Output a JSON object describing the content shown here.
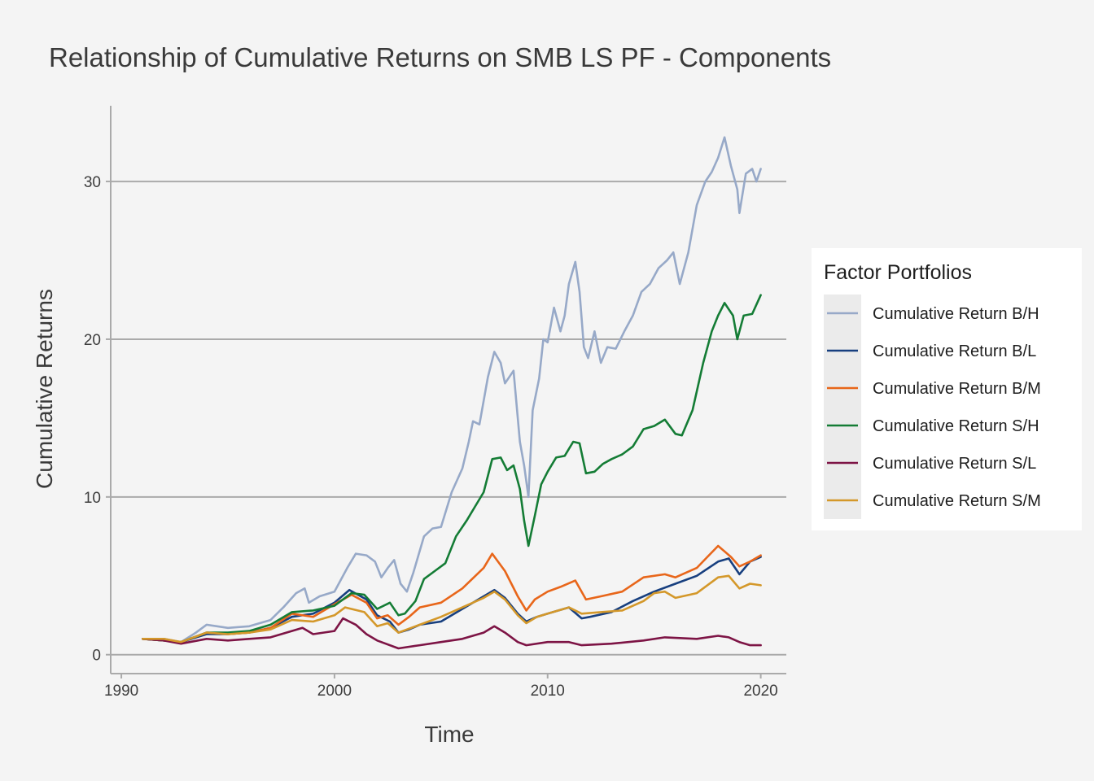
{
  "chart_data": {
    "type": "line",
    "title": "Relationship of Cumulative Returns on SMB LS PF - Components",
    "xlabel": "Time",
    "ylabel": "Cumulative Returns",
    "xlim": [
      1989.5,
      2021.2
    ],
    "ylim": [
      -1.2,
      34.8
    ],
    "x_ticks": [
      1990,
      2000,
      2010,
      2020
    ],
    "y_ticks": [
      0,
      10,
      20,
      30
    ],
    "grid": "horizontal major",
    "legend": {
      "title": "Factor Portfolios",
      "position": "right"
    },
    "series": [
      {
        "name": "Cumulative Return B/H",
        "color": "#97a9c8",
        "points": [
          [
            1991.0,
            1.0
          ],
          [
            1992.0,
            1.0
          ],
          [
            1992.8,
            0.8
          ],
          [
            1993.5,
            1.4
          ],
          [
            1994.0,
            1.9
          ],
          [
            1995.0,
            1.7
          ],
          [
            1996.0,
            1.8
          ],
          [
            1997.0,
            2.2
          ],
          [
            1997.6,
            3.0
          ],
          [
            1998.2,
            3.9
          ],
          [
            1998.6,
            4.2
          ],
          [
            1998.8,
            3.3
          ],
          [
            1999.3,
            3.7
          ],
          [
            2000.0,
            4.0
          ],
          [
            2000.6,
            5.5
          ],
          [
            2001.0,
            6.4
          ],
          [
            2001.5,
            6.3
          ],
          [
            2001.9,
            5.9
          ],
          [
            2002.2,
            4.9
          ],
          [
            2002.5,
            5.5
          ],
          [
            2002.8,
            6.0
          ],
          [
            2003.1,
            4.5
          ],
          [
            2003.4,
            4.0
          ],
          [
            2003.7,
            5.2
          ],
          [
            2004.2,
            7.5
          ],
          [
            2004.6,
            8.0
          ],
          [
            2005.0,
            8.1
          ],
          [
            2005.5,
            10.3
          ],
          [
            2006.0,
            11.8
          ],
          [
            2006.3,
            13.5
          ],
          [
            2006.5,
            14.8
          ],
          [
            2006.8,
            14.6
          ],
          [
            2007.2,
            17.6
          ],
          [
            2007.5,
            19.2
          ],
          [
            2007.8,
            18.5
          ],
          [
            2008.0,
            17.2
          ],
          [
            2008.4,
            18.0
          ],
          [
            2008.7,
            13.5
          ],
          [
            2008.9,
            12.0
          ],
          [
            2009.1,
            10.0
          ],
          [
            2009.3,
            15.5
          ],
          [
            2009.6,
            17.5
          ],
          [
            2009.8,
            20.0
          ],
          [
            2010.0,
            19.8
          ],
          [
            2010.3,
            22.0
          ],
          [
            2010.6,
            20.5
          ],
          [
            2010.8,
            21.5
          ],
          [
            2011.0,
            23.5
          ],
          [
            2011.3,
            24.9
          ],
          [
            2011.5,
            23.0
          ],
          [
            2011.7,
            19.5
          ],
          [
            2011.9,
            18.8
          ],
          [
            2012.2,
            20.5
          ],
          [
            2012.5,
            18.5
          ],
          [
            2012.8,
            19.5
          ],
          [
            2013.2,
            19.4
          ],
          [
            2013.6,
            20.5
          ],
          [
            2014.0,
            21.5
          ],
          [
            2014.4,
            23.0
          ],
          [
            2014.8,
            23.5
          ],
          [
            2015.2,
            24.5
          ],
          [
            2015.6,
            25.0
          ],
          [
            2015.9,
            25.5
          ],
          [
            2016.2,
            23.5
          ],
          [
            2016.6,
            25.5
          ],
          [
            2017.0,
            28.5
          ],
          [
            2017.4,
            30.0
          ],
          [
            2017.7,
            30.6
          ],
          [
            2018.0,
            31.5
          ],
          [
            2018.3,
            32.8
          ],
          [
            2018.6,
            31.0
          ],
          [
            2018.9,
            29.5
          ],
          [
            2019.0,
            28.0
          ],
          [
            2019.3,
            30.5
          ],
          [
            2019.6,
            30.8
          ],
          [
            2019.8,
            30.0
          ],
          [
            2020.0,
            30.8
          ]
        ]
      },
      {
        "name": "Cumulative Return B/L",
        "color": "#173f7f",
        "points": [
          [
            1991.0,
            1.0
          ],
          [
            1992.0,
            0.9
          ],
          [
            1992.8,
            0.8
          ],
          [
            1994.0,
            1.3
          ],
          [
            1995.0,
            1.3
          ],
          [
            1996.0,
            1.4
          ],
          [
            1997.0,
            1.7
          ],
          [
            1998.0,
            2.4
          ],
          [
            1999.0,
            2.6
          ],
          [
            2000.0,
            3.3
          ],
          [
            2000.7,
            4.1
          ],
          [
            2001.5,
            3.5
          ],
          [
            2002.0,
            2.5
          ],
          [
            2002.6,
            2.1
          ],
          [
            2003.0,
            1.4
          ],
          [
            2003.5,
            1.6
          ],
          [
            2004.0,
            1.9
          ],
          [
            2005.0,
            2.1
          ],
          [
            2006.0,
            2.9
          ],
          [
            2007.0,
            3.7
          ],
          [
            2007.5,
            4.1
          ],
          [
            2008.0,
            3.6
          ],
          [
            2008.6,
            2.6
          ],
          [
            2009.0,
            2.1
          ],
          [
            2009.5,
            2.4
          ],
          [
            2010.0,
            2.6
          ],
          [
            2011.0,
            3.0
          ],
          [
            2011.6,
            2.3
          ],
          [
            2012.0,
            2.4
          ],
          [
            2013.0,
            2.7
          ],
          [
            2014.0,
            3.4
          ],
          [
            2015.0,
            4.0
          ],
          [
            2016.0,
            4.5
          ],
          [
            2017.0,
            5.0
          ],
          [
            2018.0,
            5.9
          ],
          [
            2018.5,
            6.1
          ],
          [
            2019.0,
            5.1
          ],
          [
            2019.5,
            5.9
          ],
          [
            2020.0,
            6.2
          ]
        ]
      },
      {
        "name": "Cumulative Return B/M",
        "color": "#e8661a",
        "points": [
          [
            1991.0,
            1.0
          ],
          [
            1992.0,
            0.9
          ],
          [
            1992.8,
            0.8
          ],
          [
            1994.0,
            1.4
          ],
          [
            1995.0,
            1.3
          ],
          [
            1996.0,
            1.4
          ],
          [
            1997.0,
            1.7
          ],
          [
            1998.0,
            2.6
          ],
          [
            1999.0,
            2.4
          ],
          [
            2000.0,
            3.2
          ],
          [
            2000.8,
            3.8
          ],
          [
            2001.5,
            3.3
          ],
          [
            2002.0,
            2.3
          ],
          [
            2002.5,
            2.5
          ],
          [
            2003.0,
            1.9
          ],
          [
            2003.5,
            2.4
          ],
          [
            2004.0,
            3.0
          ],
          [
            2005.0,
            3.3
          ],
          [
            2006.0,
            4.2
          ],
          [
            2007.0,
            5.5
          ],
          [
            2007.4,
            6.4
          ],
          [
            2008.0,
            5.3
          ],
          [
            2008.6,
            3.7
          ],
          [
            2009.0,
            2.8
          ],
          [
            2009.4,
            3.5
          ],
          [
            2010.0,
            4.0
          ],
          [
            2010.6,
            4.3
          ],
          [
            2011.3,
            4.7
          ],
          [
            2011.8,
            3.5
          ],
          [
            2012.5,
            3.7
          ],
          [
            2013.5,
            4.0
          ],
          [
            2014.5,
            4.9
          ],
          [
            2015.5,
            5.1
          ],
          [
            2016.0,
            4.9
          ],
          [
            2017.0,
            5.5
          ],
          [
            2017.5,
            6.2
          ],
          [
            2018.0,
            6.9
          ],
          [
            2018.6,
            6.2
          ],
          [
            2019.0,
            5.6
          ],
          [
            2019.5,
            5.9
          ],
          [
            2020.0,
            6.3
          ]
        ]
      },
      {
        "name": "Cumulative Return S/H",
        "color": "#147c35",
        "points": [
          [
            1991.0,
            1.0
          ],
          [
            1992.0,
            0.9
          ],
          [
            1992.8,
            0.8
          ],
          [
            1994.0,
            1.4
          ],
          [
            1995.0,
            1.4
          ],
          [
            1996.0,
            1.5
          ],
          [
            1997.0,
            1.9
          ],
          [
            1998.0,
            2.7
          ],
          [
            1999.0,
            2.8
          ],
          [
            2000.0,
            3.1
          ],
          [
            2000.8,
            3.9
          ],
          [
            2001.4,
            3.8
          ],
          [
            2002.0,
            2.9
          ],
          [
            2002.6,
            3.3
          ],
          [
            2003.0,
            2.5
          ],
          [
            2003.3,
            2.6
          ],
          [
            2003.8,
            3.4
          ],
          [
            2004.2,
            4.8
          ],
          [
            2004.7,
            5.3
          ],
          [
            2005.2,
            5.8
          ],
          [
            2005.7,
            7.5
          ],
          [
            2006.2,
            8.5
          ],
          [
            2006.6,
            9.4
          ],
          [
            2007.0,
            10.3
          ],
          [
            2007.4,
            12.4
          ],
          [
            2007.8,
            12.5
          ],
          [
            2008.1,
            11.7
          ],
          [
            2008.4,
            12.0
          ],
          [
            2008.7,
            10.5
          ],
          [
            2008.9,
            8.5
          ],
          [
            2009.1,
            6.9
          ],
          [
            2009.4,
            8.8
          ],
          [
            2009.7,
            10.8
          ],
          [
            2010.0,
            11.6
          ],
          [
            2010.4,
            12.5
          ],
          [
            2010.8,
            12.6
          ],
          [
            2011.2,
            13.5
          ],
          [
            2011.5,
            13.4
          ],
          [
            2011.8,
            11.5
          ],
          [
            2012.2,
            11.6
          ],
          [
            2012.6,
            12.1
          ],
          [
            2013.0,
            12.4
          ],
          [
            2013.5,
            12.7
          ],
          [
            2014.0,
            13.2
          ],
          [
            2014.5,
            14.3
          ],
          [
            2015.0,
            14.5
          ],
          [
            2015.5,
            14.9
          ],
          [
            2016.0,
            14.0
          ],
          [
            2016.3,
            13.9
          ],
          [
            2016.8,
            15.5
          ],
          [
            2017.3,
            18.5
          ],
          [
            2017.7,
            20.5
          ],
          [
            2018.0,
            21.5
          ],
          [
            2018.3,
            22.3
          ],
          [
            2018.7,
            21.5
          ],
          [
            2018.9,
            20.0
          ],
          [
            2019.2,
            21.5
          ],
          [
            2019.6,
            21.6
          ],
          [
            2020.0,
            22.8
          ]
        ]
      },
      {
        "name": "Cumulative Return S/L",
        "color": "#7d1445",
        "points": [
          [
            1991.0,
            1.0
          ],
          [
            1992.0,
            0.9
          ],
          [
            1992.8,
            0.7
          ],
          [
            1994.0,
            1.0
          ],
          [
            1995.0,
            0.9
          ],
          [
            1996.0,
            1.0
          ],
          [
            1997.0,
            1.1
          ],
          [
            1998.0,
            1.5
          ],
          [
            1998.5,
            1.7
          ],
          [
            1999.0,
            1.3
          ],
          [
            2000.0,
            1.5
          ],
          [
            2000.4,
            2.3
          ],
          [
            2001.0,
            1.9
          ],
          [
            2001.5,
            1.3
          ],
          [
            2002.0,
            0.9
          ],
          [
            2003.0,
            0.4
          ],
          [
            2004.0,
            0.6
          ],
          [
            2005.0,
            0.8
          ],
          [
            2006.0,
            1.0
          ],
          [
            2007.0,
            1.4
          ],
          [
            2007.5,
            1.8
          ],
          [
            2008.0,
            1.4
          ],
          [
            2008.6,
            0.8
          ],
          [
            2009.0,
            0.6
          ],
          [
            2010.0,
            0.8
          ],
          [
            2011.0,
            0.8
          ],
          [
            2011.6,
            0.6
          ],
          [
            2013.0,
            0.7
          ],
          [
            2014.5,
            0.9
          ],
          [
            2015.5,
            1.1
          ],
          [
            2017.0,
            1.0
          ],
          [
            2018.0,
            1.2
          ],
          [
            2018.5,
            1.1
          ],
          [
            2019.0,
            0.8
          ],
          [
            2019.5,
            0.6
          ],
          [
            2020.0,
            0.6
          ]
        ]
      },
      {
        "name": "Cumulative Return S/M",
        "color": "#d4982a",
        "points": [
          [
            1991.0,
            1.0
          ],
          [
            1992.0,
            1.0
          ],
          [
            1992.8,
            0.8
          ],
          [
            1994.0,
            1.4
          ],
          [
            1995.0,
            1.3
          ],
          [
            1996.0,
            1.4
          ],
          [
            1997.0,
            1.6
          ],
          [
            1998.0,
            2.2
          ],
          [
            1999.0,
            2.1
          ],
          [
            2000.0,
            2.5
          ],
          [
            2000.5,
            3.0
          ],
          [
            2001.4,
            2.7
          ],
          [
            2002.0,
            1.8
          ],
          [
            2002.5,
            2.0
          ],
          [
            2003.0,
            1.4
          ],
          [
            2004.0,
            1.9
          ],
          [
            2005.0,
            2.4
          ],
          [
            2006.0,
            3.0
          ],
          [
            2007.0,
            3.6
          ],
          [
            2007.5,
            4.0
          ],
          [
            2008.0,
            3.5
          ],
          [
            2008.6,
            2.5
          ],
          [
            2009.0,
            2.0
          ],
          [
            2009.5,
            2.4
          ],
          [
            2010.0,
            2.6
          ],
          [
            2011.0,
            3.0
          ],
          [
            2011.6,
            2.6
          ],
          [
            2012.5,
            2.7
          ],
          [
            2013.5,
            2.8
          ],
          [
            2014.5,
            3.4
          ],
          [
            2015.0,
            3.9
          ],
          [
            2015.5,
            4.0
          ],
          [
            2016.0,
            3.6
          ],
          [
            2017.0,
            3.9
          ],
          [
            2018.0,
            4.9
          ],
          [
            2018.5,
            5.0
          ],
          [
            2019.0,
            4.2
          ],
          [
            2019.5,
            4.5
          ],
          [
            2020.0,
            4.4
          ]
        ]
      }
    ]
  }
}
